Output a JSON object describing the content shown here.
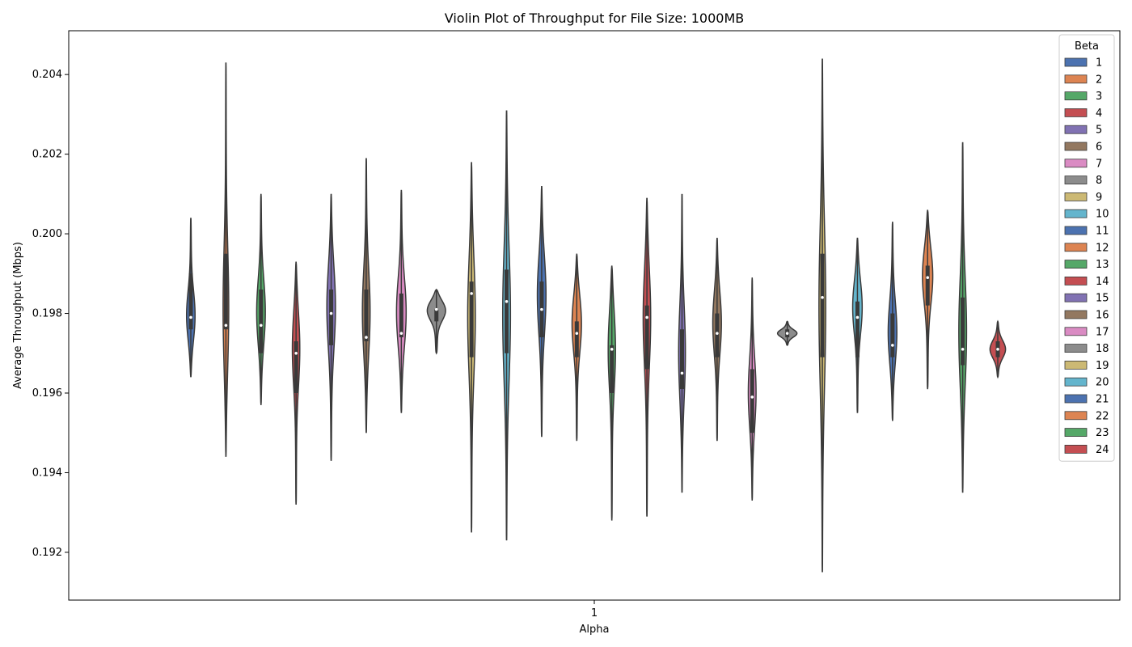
{
  "chart_data": {
    "type": "violin",
    "title": "Violin Plot of Throughput for File Size: 1000MB",
    "xlabel": "Alpha",
    "ylabel": "Average Throughput (Mbps)",
    "x_categories": [
      "1"
    ],
    "ylim": [
      0.1908,
      0.2051
    ],
    "yticks": [
      0.192,
      0.194,
      0.196,
      0.198,
      0.2,
      0.202,
      0.204
    ],
    "ytick_labels": [
      "0.192",
      "0.194",
      "0.196",
      "0.198",
      "0.200",
      "0.202",
      "0.204"
    ],
    "grid": false,
    "legend": {
      "title": "Beta",
      "placement": "upper-right"
    },
    "series": [
      {
        "name": "1",
        "color": "#4c72b0",
        "min": 0.1964,
        "max": 0.2004,
        "q1": 0.1976,
        "median": 0.1979,
        "q3": 0.199,
        "mode": 0.1979,
        "width": 0.45
      },
      {
        "name": "2",
        "color": "#dd8452",
        "min": 0.1944,
        "max": 0.2043,
        "q1": 0.1976,
        "median": 0.1977,
        "q3": 0.1995,
        "mode": 0.198,
        "width": 0.3
      },
      {
        "name": "3",
        "color": "#55a868",
        "min": 0.1957,
        "max": 0.201,
        "q1": 0.197,
        "median": 0.1977,
        "q3": 0.1986,
        "mode": 0.198,
        "width": 0.45
      },
      {
        "name": "4",
        "color": "#c44e52",
        "min": 0.1932,
        "max": 0.1993,
        "q1": 0.196,
        "median": 0.197,
        "q3": 0.1973,
        "mode": 0.1972,
        "width": 0.4
      },
      {
        "name": "5",
        "color": "#8172b3",
        "min": 0.1943,
        "max": 0.201,
        "q1": 0.1972,
        "median": 0.198,
        "q3": 0.1986,
        "mode": 0.1982,
        "width": 0.45
      },
      {
        "name": "6",
        "color": "#937860",
        "min": 0.195,
        "max": 0.2019,
        "q1": 0.1973,
        "median": 0.1974,
        "q3": 0.1986,
        "mode": 0.198,
        "width": 0.4
      },
      {
        "name": "7",
        "color": "#da8bc3",
        "min": 0.1955,
        "max": 0.2011,
        "q1": 0.1974,
        "median": 0.1975,
        "q3": 0.1985,
        "mode": 0.198,
        "width": 0.5
      },
      {
        "name": "8",
        "color": "#8c8c8c",
        "min": 0.197,
        "max": 0.1986,
        "q1": 0.1978,
        "median": 0.1981,
        "q3": 0.1981,
        "mode": 0.1981,
        "width": 1.0
      },
      {
        "name": "9",
        "color": "#ccb974",
        "min": 0.1925,
        "max": 0.2018,
        "q1": 0.1969,
        "median": 0.1985,
        "q3": 0.1988,
        "mode": 0.198,
        "width": 0.4
      },
      {
        "name": "10",
        "color": "#64b5cd",
        "min": 0.1923,
        "max": 0.2031,
        "q1": 0.197,
        "median": 0.1983,
        "q3": 0.1991,
        "mode": 0.198,
        "width": 0.4
      },
      {
        "name": "11",
        "color": "#4c72b0",
        "min": 0.1949,
        "max": 0.2012,
        "q1": 0.1974,
        "median": 0.1981,
        "q3": 0.1988,
        "mode": 0.1985,
        "width": 0.45
      },
      {
        "name": "12",
        "color": "#dd8452",
        "min": 0.1948,
        "max": 0.1995,
        "q1": 0.1969,
        "median": 0.1975,
        "q3": 0.1978,
        "mode": 0.1978,
        "width": 0.5
      },
      {
        "name": "13",
        "color": "#55a868",
        "min": 0.1928,
        "max": 0.1992,
        "q1": 0.196,
        "median": 0.1971,
        "q3": 0.1972,
        "mode": 0.1972,
        "width": 0.4
      },
      {
        "name": "14",
        "color": "#c44e52",
        "min": 0.1929,
        "max": 0.2009,
        "q1": 0.1966,
        "median": 0.1979,
        "q3": 0.1982,
        "mode": 0.198,
        "width": 0.4
      },
      {
        "name": "15",
        "color": "#8172b3",
        "min": 0.1935,
        "max": 0.201,
        "q1": 0.1961,
        "median": 0.1965,
        "q3": 0.1976,
        "mode": 0.197,
        "width": 0.35
      },
      {
        "name": "16",
        "color": "#937860",
        "min": 0.1948,
        "max": 0.1999,
        "q1": 0.1969,
        "median": 0.1975,
        "q3": 0.198,
        "mode": 0.1978,
        "width": 0.45
      },
      {
        "name": "17",
        "color": "#da8bc3",
        "min": 0.1933,
        "max": 0.1989,
        "q1": 0.195,
        "median": 0.1959,
        "q3": 0.1966,
        "mode": 0.196,
        "width": 0.4
      },
      {
        "name": "18",
        "color": "#8c8c8c",
        "min": 0.1972,
        "max": 0.1978,
        "q1": 0.1974,
        "median": 0.1975,
        "q3": 0.1976,
        "mode": 0.1975,
        "width": 1.0
      },
      {
        "name": "19",
        "color": "#ccb974",
        "min": 0.1915,
        "max": 0.2044,
        "q1": 0.1969,
        "median": 0.1984,
        "q3": 0.1995,
        "mode": 0.1982,
        "width": 0.35
      },
      {
        "name": "20",
        "color": "#64b5cd",
        "min": 0.1955,
        "max": 0.1999,
        "q1": 0.1969,
        "median": 0.1979,
        "q3": 0.1983,
        "mode": 0.1982,
        "width": 0.5
      },
      {
        "name": "21",
        "color": "#4c72b0",
        "min": 0.1953,
        "max": 0.2003,
        "q1": 0.1969,
        "median": 0.1972,
        "q3": 0.198,
        "mode": 0.1975,
        "width": 0.45
      },
      {
        "name": "22",
        "color": "#dd8452",
        "min": 0.1961,
        "max": 0.2006,
        "q1": 0.1982,
        "median": 0.1989,
        "q3": 0.1992,
        "mode": 0.199,
        "width": 0.55
      },
      {
        "name": "23",
        "color": "#55a868",
        "min": 0.1935,
        "max": 0.2023,
        "q1": 0.1967,
        "median": 0.1971,
        "q3": 0.1984,
        "mode": 0.1975,
        "width": 0.4
      },
      {
        "name": "24",
        "color": "#c44e52",
        "min": 0.1964,
        "max": 0.1978,
        "q1": 0.1969,
        "median": 0.1971,
        "q3": 0.1973,
        "mode": 0.1971,
        "width": 0.8
      }
    ]
  }
}
